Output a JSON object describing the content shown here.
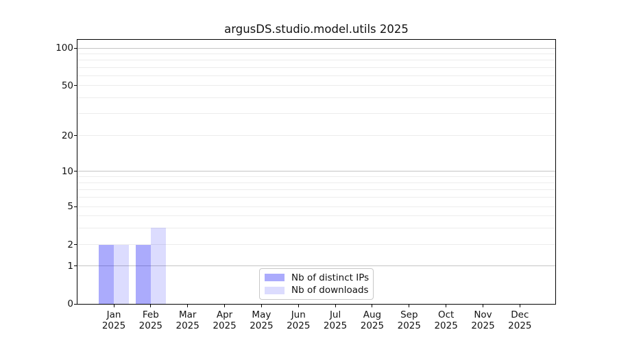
{
  "chart_data": {
    "type": "bar",
    "title": "argusDS.studio.model.utils 2025",
    "x_axis": {
      "categories": [
        "Jan",
        "Feb",
        "Mar",
        "Apr",
        "May",
        "Jun",
        "Jul",
        "Aug",
        "Sep",
        "Oct",
        "Nov",
        "Dec"
      ],
      "year_line": "2025"
    },
    "series": [
      {
        "name": "Nb of distinct IPs",
        "key": "distinct-ips",
        "color": "rgba(10,10,245,0.34)",
        "values": [
          2,
          2,
          0,
          0,
          0,
          0,
          0,
          0,
          0,
          0,
          0,
          0
        ]
      },
      {
        "name": "Nb of downloads",
        "key": "downloads",
        "color": "rgba(10,10,245,0.14)",
        "values": [
          2,
          3,
          0,
          0,
          0,
          0,
          0,
          0,
          0,
          0,
          0,
          0
        ]
      }
    ],
    "y_axis": {
      "tick_values": [
        0,
        1,
        2,
        5,
        10,
        20,
        50,
        100
      ],
      "major_gridlines": [
        1,
        10,
        100
      ],
      "minor_gridlines": [
        3,
        4,
        6,
        7,
        8,
        9,
        30,
        40,
        60,
        70,
        80,
        90
      ],
      "scale": "symlog-like",
      "scale_anchors": [
        [
          0,
          0
        ],
        [
          1,
          0.1429
        ],
        [
          2,
          0.2234
        ],
        [
          5,
          0.3688
        ],
        [
          10,
          0.5013
        ],
        [
          20,
          0.6364
        ],
        [
          50,
          0.826
        ],
        [
          100,
          0.9688
        ]
      ],
      "ylim": [
        0,
        112
      ]
    },
    "legend": {
      "position": "lower center",
      "entries": [
        "Nb of distinct IPs",
        "Nb of downloads"
      ]
    },
    "colors": {
      "grid_major": "#c4c4c4",
      "grid_minor": "#ececec",
      "axis": "#000000",
      "text": "#1a1a1a"
    }
  }
}
